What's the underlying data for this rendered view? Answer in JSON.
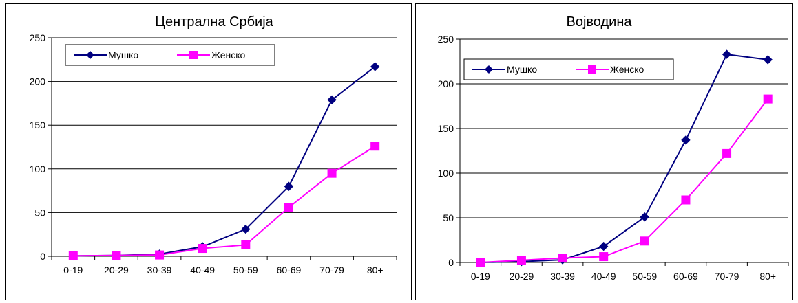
{
  "chart_data": [
    {
      "type": "line",
      "title": "Централна Србија",
      "categories": [
        "0-19",
        "20-29",
        "30-39",
        "40-49",
        "50-59",
        "60-69",
        "70-79",
        "80+"
      ],
      "series": [
        {
          "name": "Мушко",
          "values": [
            0.5,
            1,
            2.5,
            11,
            31,
            80,
            179,
            217
          ],
          "color": "#000080",
          "marker": "diamond"
        },
        {
          "name": "Женско",
          "values": [
            0.5,
            1,
            1.5,
            9,
            13,
            56,
            95,
            126
          ],
          "color": "#ff00ff",
          "marker": "square"
        }
      ],
      "ylim": [
        0,
        250
      ],
      "yticks": [
        0,
        50,
        100,
        150,
        200,
        250
      ],
      "grid": true,
      "legend_position": "top-left"
    },
    {
      "type": "line",
      "title": "Војводина",
      "categories": [
        "0-19",
        "20-29",
        "30-39",
        "40-49",
        "50-59",
        "60-69",
        "70-79",
        "80+"
      ],
      "series": [
        {
          "name": "Мушко",
          "values": [
            0,
            1,
            3,
            18,
            51,
            137,
            233,
            227
          ],
          "color": "#000080",
          "marker": "diamond"
        },
        {
          "name": "Женско",
          "values": [
            0,
            2.5,
            5,
            6.5,
            24,
            70,
            122,
            183
          ],
          "color": "#ff00ff",
          "marker": "square"
        }
      ],
      "ylim": [
        0,
        250
      ],
      "yticks": [
        0,
        50,
        100,
        150,
        200,
        250
      ],
      "grid": true,
      "legend_position": "top-left"
    }
  ]
}
